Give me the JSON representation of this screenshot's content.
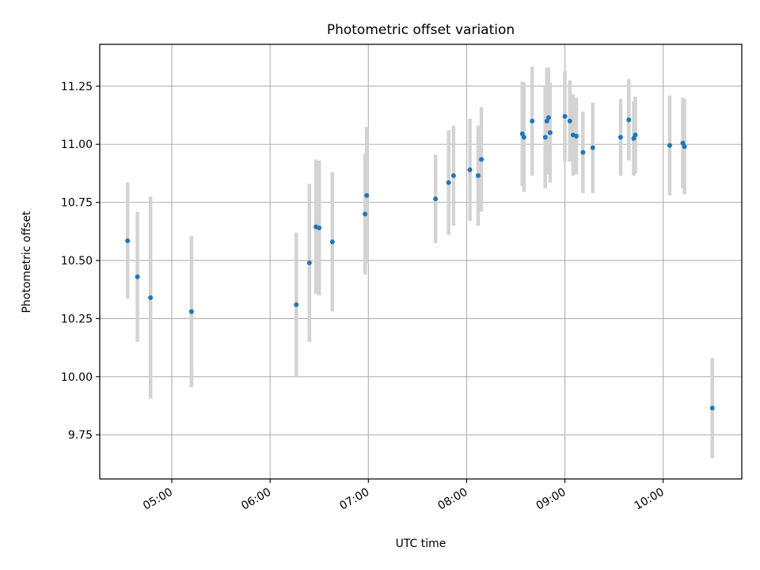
{
  "chart_data": {
    "type": "scatter",
    "title": "Photometric offset variation",
    "xlabel": "UTC time",
    "ylabel": "Photometric offset",
    "xlim": [
      "04:16",
      "10:48"
    ],
    "ylim": [
      9.56,
      11.43
    ],
    "x_ticks": [
      "05:00",
      "06:00",
      "07:00",
      "08:00",
      "09:00",
      "10:00"
    ],
    "y_ticks": [
      "9.75",
      "10.00",
      "10.25",
      "10.50",
      "10.75",
      "11.00",
      "11.25"
    ],
    "grid": true,
    "colors": {
      "marker": "#1f77b4",
      "errorbar": "#d3d3d3",
      "grid": "#b0b0b0"
    },
    "points": [
      {
        "t": "04:33",
        "y": 10.585,
        "err": 0.25
      },
      {
        "t": "04:39",
        "y": 10.43,
        "err": 0.28
      },
      {
        "t": "04:47",
        "y": 10.34,
        "err": 0.435
      },
      {
        "t": "05:12",
        "y": 10.28,
        "err": 0.325
      },
      {
        "t": "06:16",
        "y": 10.31,
        "err": 0.31
      },
      {
        "t": "06:24",
        "y": 10.49,
        "err": 0.34
      },
      {
        "t": "06:28",
        "y": 10.645,
        "err": 0.29
      },
      {
        "t": "06:30",
        "y": 10.64,
        "err": 0.29
      },
      {
        "t": "06:38",
        "y": 10.58,
        "err": 0.3
      },
      {
        "t": "06:58",
        "y": 10.7,
        "err": 0.26
      },
      {
        "t": "06:59",
        "y": 10.78,
        "err": 0.295
      },
      {
        "t": "07:41",
        "y": 10.765,
        "err": 0.19
      },
      {
        "t": "07:49",
        "y": 10.835,
        "err": 0.225
      },
      {
        "t": "07:52",
        "y": 10.865,
        "err": 0.215
      },
      {
        "t": "08:02",
        "y": 10.89,
        "err": 0.22
      },
      {
        "t": "08:07",
        "y": 10.865,
        "err": 0.215
      },
      {
        "t": "08:09",
        "y": 10.935,
        "err": 0.225
      },
      {
        "t": "08:34",
        "y": 11.045,
        "err": 0.225
      },
      {
        "t": "08:35",
        "y": 11.03,
        "err": 0.235
      },
      {
        "t": "08:40",
        "y": 11.1,
        "err": 0.235
      },
      {
        "t": "08:48",
        "y": 11.03,
        "err": 0.22
      },
      {
        "t": "08:49",
        "y": 11.1,
        "err": 0.23
      },
      {
        "t": "08:50",
        "y": 11.115,
        "err": 0.215
      },
      {
        "t": "08:51",
        "y": 11.05,
        "err": 0.215
      },
      {
        "t": "09:00",
        "y": 11.12,
        "err": 0.195
      },
      {
        "t": "09:03",
        "y": 11.1,
        "err": 0.175
      },
      {
        "t": "09:05",
        "y": 11.04,
        "err": 0.175
      },
      {
        "t": "09:07",
        "y": 11.035,
        "err": 0.165
      },
      {
        "t": "09:11",
        "y": 10.965,
        "err": 0.175
      },
      {
        "t": "09:17",
        "y": 10.985,
        "err": 0.195
      },
      {
        "t": "09:34",
        "y": 11.03,
        "err": 0.165
      },
      {
        "t": "09:39",
        "y": 11.105,
        "err": 0.175
      },
      {
        "t": "09:42",
        "y": 11.025,
        "err": 0.16
      },
      {
        "t": "09:43",
        "y": 11.04,
        "err": 0.165
      },
      {
        "t": "10:04",
        "y": 10.995,
        "err": 0.215
      },
      {
        "t": "10:12",
        "y": 11.005,
        "err": 0.195
      },
      {
        "t": "10:13",
        "y": 10.99,
        "err": 0.205
      },
      {
        "t": "10:30",
        "y": 9.865,
        "err": 0.215
      }
    ]
  }
}
